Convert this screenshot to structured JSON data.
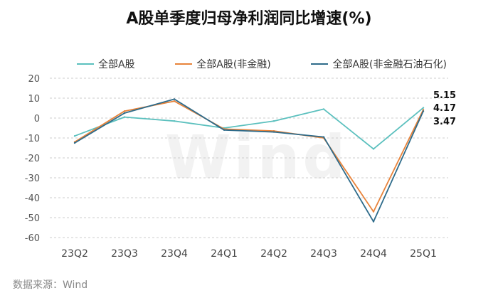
{
  "title": "A股单季度归母净利润同比增速(%)",
  "source": "数据来源：Wind",
  "watermark": "Wind",
  "chart_data": {
    "type": "line",
    "title": "A股单季度归母净利润同比增速(%)",
    "xlabel": "",
    "ylabel": "",
    "categories": [
      "23Q2",
      "23Q3",
      "23Q4",
      "24Q1",
      "24Q2",
      "24Q3",
      "24Q4",
      "25Q1"
    ],
    "ylim": [
      -60,
      20
    ],
    "yticks": [
      20,
      10,
      0,
      -10,
      -20,
      -30,
      -40,
      -50,
      -60
    ],
    "grid": "horizontal-dashed",
    "legend": "top",
    "series": [
      {
        "name": "全部A股",
        "color": "#5bc0be",
        "values": [
          -9,
          0.5,
          -1.5,
          -5,
          -1.5,
          4.5,
          -15.5,
          5.15
        ]
      },
      {
        "name": "全部A股(非金融)",
        "color": "#e8833a",
        "values": [
          -12,
          3.5,
          8.5,
          -5.5,
          -6.5,
          -10,
          -47,
          4.17
        ]
      },
      {
        "name": "全部A股(非金融石油石化)",
        "color": "#2e6b8a",
        "values": [
          -12.5,
          2.5,
          9.5,
          -6,
          -7,
          -9.5,
          -52,
          3.47
        ]
      }
    ],
    "annotations": [
      "5.15",
      "4.17",
      "3.47"
    ]
  }
}
